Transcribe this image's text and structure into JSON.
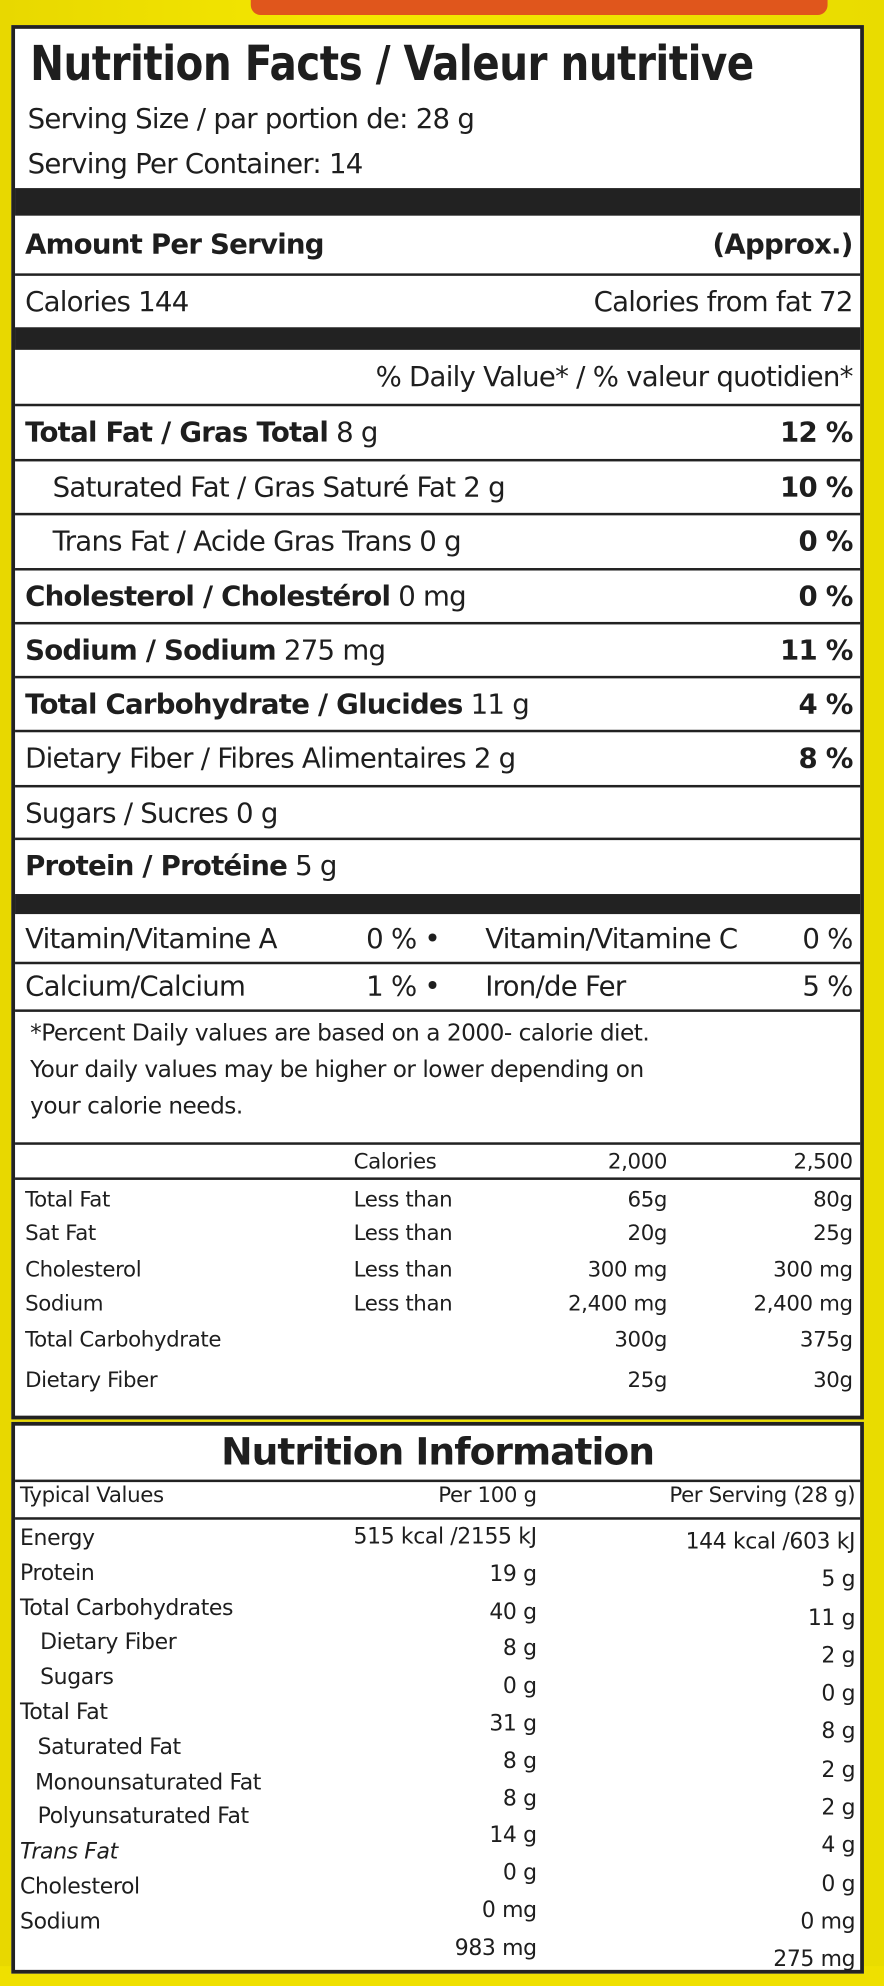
{
  "title": "Nutrition Facts / Valeur nutritive",
  "serving_size": "Serving Size / par portion de: 28 g",
  "servings_per_container": "Serving Per Container: 14",
  "amount_per_serving": "Amount Per Serving",
  "approx": "(Approx.)",
  "calories": "Calories 144",
  "calories_from_fat": "Calories from fat 72",
  "daily_value_header": "% Daily Value* / % valeur quotidien*",
  "nutrients": [
    {
      "bold": "Total Fat / Gras Total",
      "amount": " 8 g",
      "dv": "12 %"
    },
    {
      "bold": "",
      "label": "Saturated Fat / Gras Saturé Fat 2 g",
      "dv": "10 %"
    },
    {
      "label": "Trans Fat / Acide Gras Trans 0 g",
      "dv": "0 %"
    },
    {
      "bold": "Cholesterol / Cholestérol",
      "amount": " 0 mg",
      "dv": "0 %"
    },
    {
      "bold": "Sodium / Sodium",
      "amount": " 275 mg",
      "dv": "11 %"
    },
    {
      "bold": "Total Carbohydrate / Glucides",
      "amount": " 11 g",
      "dv": "4 %"
    },
    {
      "label": "Dietary Fiber / Fibres Alimentaires 2 g",
      "dv": "8 %"
    },
    {
      "label": "Sugars / Sucres 0 g",
      "dv": ""
    },
    {
      "bold": "Protein / Protéine",
      "amount": " 5 g",
      "dv": ""
    }
  ],
  "vitamins": [
    {
      "left": "Vitamin/Vitamine A",
      "lv": "0 % •",
      "right": "Vitamin/Vitamine C",
      "rv": "0 %"
    },
    {
      "left": "Calcium/Calcium",
      "lv": "1 % •",
      "right": "Iron/de Fer",
      "rv": "5 %"
    }
  ],
  "footnote": [
    "*Percent Daily values are based on a 2000- calorie diet.",
    "Your daily values may be higher or lower depending on",
    "your calorie needs."
  ],
  "daily_table": {
    "header": [
      "",
      "Calories",
      "2,000",
      "2,500"
    ],
    "rows": [
      [
        "Total Fat",
        "Less than",
        "65g",
        "80g"
      ],
      [
        "Sat Fat",
        "Less than",
        "20g",
        "25g"
      ],
      [
        "Cholesterol",
        "Less than",
        "300 mg",
        "300 mg"
      ],
      [
        "Sodium",
        "Less than",
        "2,400 mg",
        "2,400 mg"
      ],
      [
        "Total Carbohydrate",
        "",
        "300g",
        "375g"
      ],
      [
        "Dietary Fiber",
        "",
        "25g",
        "30g"
      ]
    ]
  },
  "nutrition_information": {
    "title": "Nutrition Information",
    "headers": [
      "Typical Values",
      "Per 100 g",
      "Per Serving (28 g)"
    ],
    "labels": [
      "Energy",
      "Protein",
      "Total Carbohydrates",
      "Dietary Fiber",
      "Sugars",
      "Total Fat",
      "Saturated Fat",
      "Monounsaturated Fat",
      "Polyunsaturated Fat",
      "Trans Fat",
      "Cholesterol",
      "Sodium"
    ],
    "per100": [
      "515 kcal /2155 kJ",
      "19 g",
      "40 g",
      "8 g",
      "0 g",
      "31 g",
      "8 g",
      "8 g",
      "14 g",
      "0 g",
      "0 mg",
      "983 mg"
    ],
    "per_serving": [
      "144 kcal /603 kJ",
      "5 g",
      "11 g",
      "2 g",
      "0 g",
      "8 g",
      "2 g",
      "2 g",
      "4 g",
      "0 g",
      "0 mg",
      "275 mg"
    ]
  },
  "colors": {
    "background": "#efe000",
    "label": "#ffffff",
    "ink": "#1e1e1e",
    "top_strip": "#e0561c"
  }
}
